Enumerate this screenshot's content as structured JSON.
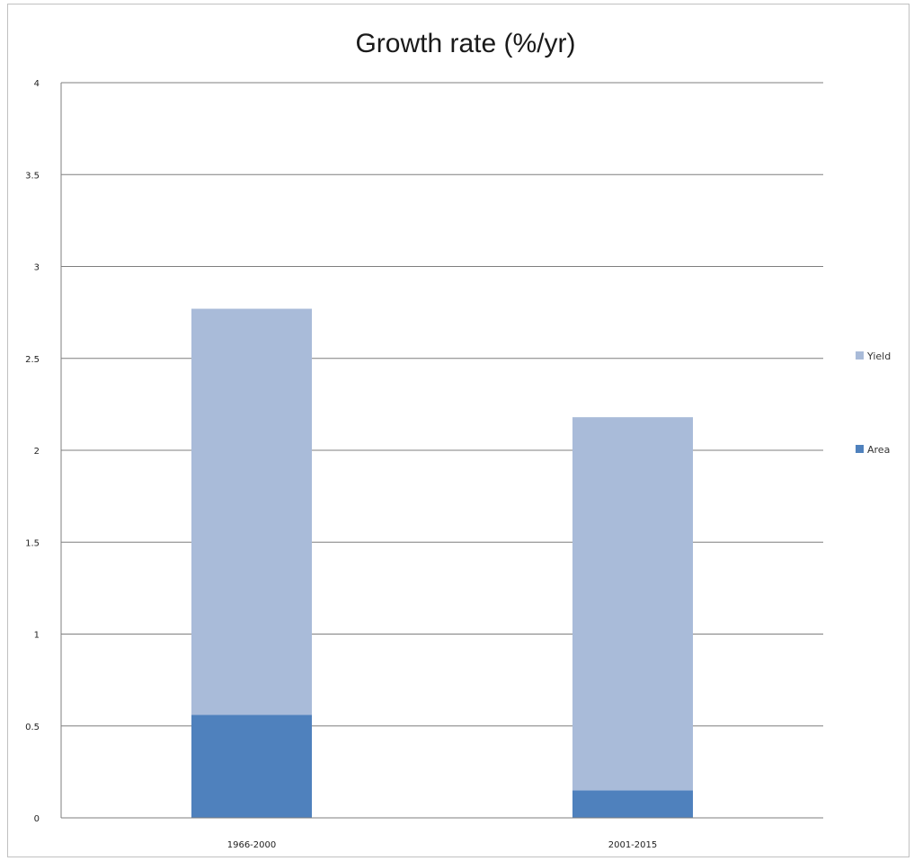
{
  "chart_data": {
    "type": "bar",
    "stacked": true,
    "title": "Growth rate (%/yr)",
    "xlabel": "",
    "ylabel": "",
    "categories": [
      "1966-2000",
      "2001-2015"
    ],
    "series": [
      {
        "name": "Area",
        "values": [
          0.56,
          0.15
        ],
        "color": "#4f81bd"
      },
      {
        "name": "Yield",
        "values": [
          2.21,
          2.03
        ],
        "color": "#a9bbd9"
      }
    ],
    "ylim": [
      0,
      4
    ],
    "yticks": [
      "0",
      "0.5",
      "1",
      "1.5",
      "2",
      "2.5",
      "3",
      "3.5",
      "4"
    ],
    "grid": true,
    "legend_position": "right",
    "legend_order": [
      "Yield",
      "Area"
    ]
  }
}
